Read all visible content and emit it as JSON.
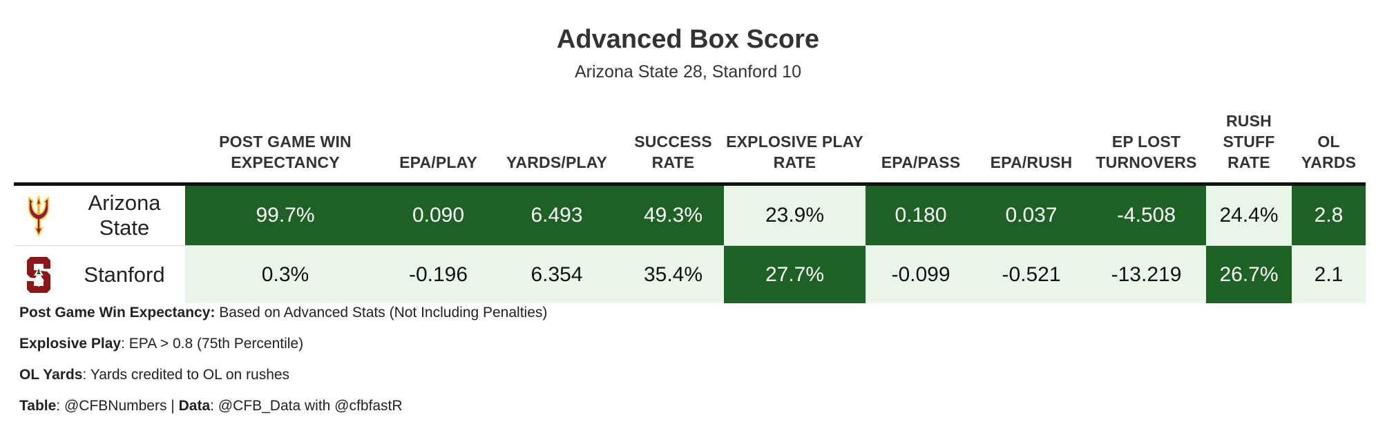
{
  "header": {
    "title": "Advanced Box Score",
    "subtitle": "Arizona State 28, Stanford 10"
  },
  "chart_data": {
    "type": "table",
    "columns": [
      "POST GAME WIN EXPECTANCY",
      "EPA/PLAY",
      "YARDS/PLAY",
      "SUCCESS RATE",
      "EXPLOSIVE PLAY RATE",
      "EPA/PASS",
      "EPA/RUSH",
      "EP LOST TURNOVERS",
      "RUSH STUFF RATE",
      "OL YARDS"
    ],
    "rows": [
      {
        "team": "Arizona State",
        "logo": "pitchfork-logo",
        "values": [
          "99.7%",
          "0.090",
          "6.493",
          "49.3%",
          "23.9%",
          "0.180",
          "0.037",
          "-4.508",
          "24.4%",
          "2.8"
        ],
        "highlight": [
          "dark",
          "dark",
          "dark",
          "dark",
          "light",
          "dark",
          "dark",
          "dark",
          "light",
          "dark"
        ]
      },
      {
        "team": "Stanford",
        "logo": "block-s-tree-logo",
        "values": [
          "0.3%",
          "-0.196",
          "6.354",
          "35.4%",
          "27.7%",
          "-0.099",
          "-0.521",
          "-13.219",
          "26.7%",
          "2.1"
        ],
        "highlight": [
          "light",
          "light",
          "light",
          "light",
          "dark",
          "light",
          "light",
          "light",
          "dark",
          "light"
        ]
      }
    ],
    "colors": {
      "dark": "#1e6124",
      "light": "#e9f5e9"
    }
  },
  "footnotes": [
    {
      "label": "Post Game Win Expectancy:",
      "text": " Based on Advanced Stats (Not Including Penalties)"
    },
    {
      "label": "Explosive Play",
      "text": ": EPA > 0.8 (75th Percentile)"
    },
    {
      "label": "OL Yards",
      "text": ": Yards credited to OL on rushes"
    },
    {
      "label": "Table",
      "text": ": @CFBNumbers | ",
      "label2": "Data",
      "text2": ": @CFB_Data with @cfbfastR"
    }
  ]
}
